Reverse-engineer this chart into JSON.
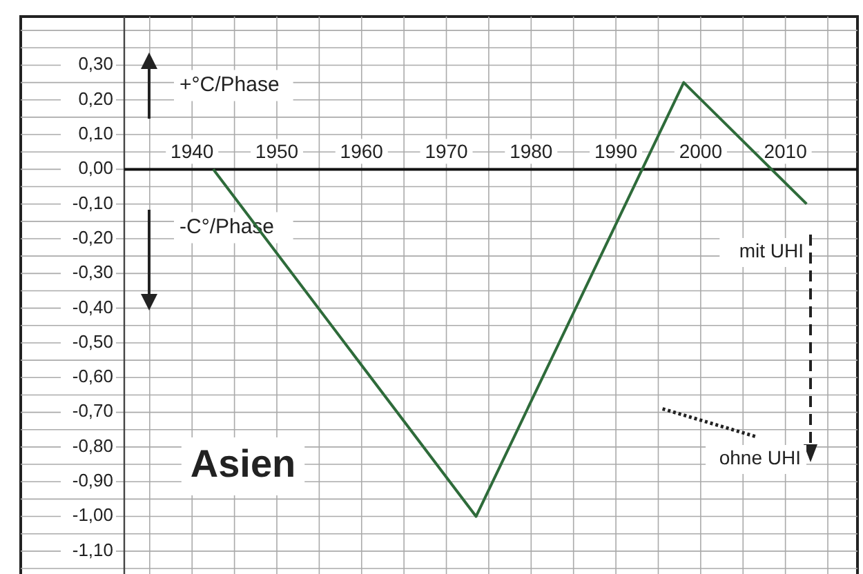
{
  "chart_data": {
    "type": "line",
    "x": [
      1942.5,
      1973.5,
      1998,
      2012.5
    ],
    "series": [
      {
        "color": "#2e6b3a",
        "values": [
          0,
          -1.0,
          0.25,
          -0.1
        ]
      },
      {
        "color": "#222222",
        "x": [
          1995.5,
          2006.5
        ],
        "values": [
          -0.69,
          -0.77
        ],
        "line_style": "dotted"
      }
    ],
    "xlim": [
      1932,
      2018.5
    ],
    "ylim": [
      -1.15,
      0.44
    ],
    "xticks": [
      {
        "value": 1935,
        "label": null
      },
      {
        "value": 1940,
        "label": "1940"
      },
      {
        "value": 1945,
        "label": null
      },
      {
        "value": 1950,
        "label": "1950"
      },
      {
        "value": 1955,
        "label": null
      },
      {
        "value": 1960,
        "label": "1960"
      },
      {
        "value": 1965,
        "label": null
      },
      {
        "value": 1970,
        "label": "1970"
      },
      {
        "value": 1975,
        "label": null
      },
      {
        "value": 1980,
        "label": "1980"
      },
      {
        "value": 1985,
        "label": null
      },
      {
        "value": 1990,
        "label": "1990"
      },
      {
        "value": 1995,
        "label": null
      },
      {
        "value": 2000,
        "label": "2000"
      },
      {
        "value": 2005,
        "label": null
      },
      {
        "value": 2010,
        "label": "2010"
      },
      {
        "value": 2015,
        "label": null
      }
    ],
    "yticks": [
      {
        "value": -1.15,
        "label": null
      },
      {
        "value": -1.1,
        "label": "-1,10"
      },
      {
        "value": -1.05,
        "label": null
      },
      {
        "value": -1.0,
        "label": "-1,00"
      },
      {
        "value": -0.95,
        "label": null
      },
      {
        "value": -0.9,
        "label": "-0,90"
      },
      {
        "value": -0.85,
        "label": null
      },
      {
        "value": -0.8,
        "label": "-0,80"
      },
      {
        "value": -0.75,
        "label": null
      },
      {
        "value": -0.7,
        "label": "-0,70"
      },
      {
        "value": -0.65,
        "label": null
      },
      {
        "value": -0.6,
        "label": "-0,60"
      },
      {
        "value": -0.55,
        "label": null
      },
      {
        "value": -0.5,
        "label": "-0,50"
      },
      {
        "value": -0.45,
        "label": null
      },
      {
        "value": -0.4,
        "label": "-0,40"
      },
      {
        "value": -0.35,
        "label": null
      },
      {
        "value": -0.3,
        "label": "-0,30"
      },
      {
        "value": -0.25,
        "label": null
      },
      {
        "value": -0.2,
        "label": "-0,20"
      },
      {
        "value": -0.15,
        "label": null
      },
      {
        "value": -0.1,
        "label": "-0,10"
      },
      {
        "value": -0.05,
        "label": null
      },
      {
        "value": 0,
        "label": "0,00"
      },
      {
        "value": 0.05,
        "label": null
      },
      {
        "value": 0.1,
        "label": "0,10"
      },
      {
        "value": 0.15,
        "label": null
      },
      {
        "value": 0.2,
        "label": "0,20"
      },
      {
        "value": 0.25,
        "label": null
      },
      {
        "value": 0.3,
        "label": "0,30"
      },
      {
        "value": 0.35,
        "label": null
      },
      {
        "value": 0.4,
        "label": null
      }
    ],
    "grid": true,
    "line_style": "solid",
    "marker": "none",
    "annotations": [
      "+°C/Phase",
      "-C°/Phase",
      "mit UHI",
      "ohne UHI",
      "Asien"
    ]
  }
}
